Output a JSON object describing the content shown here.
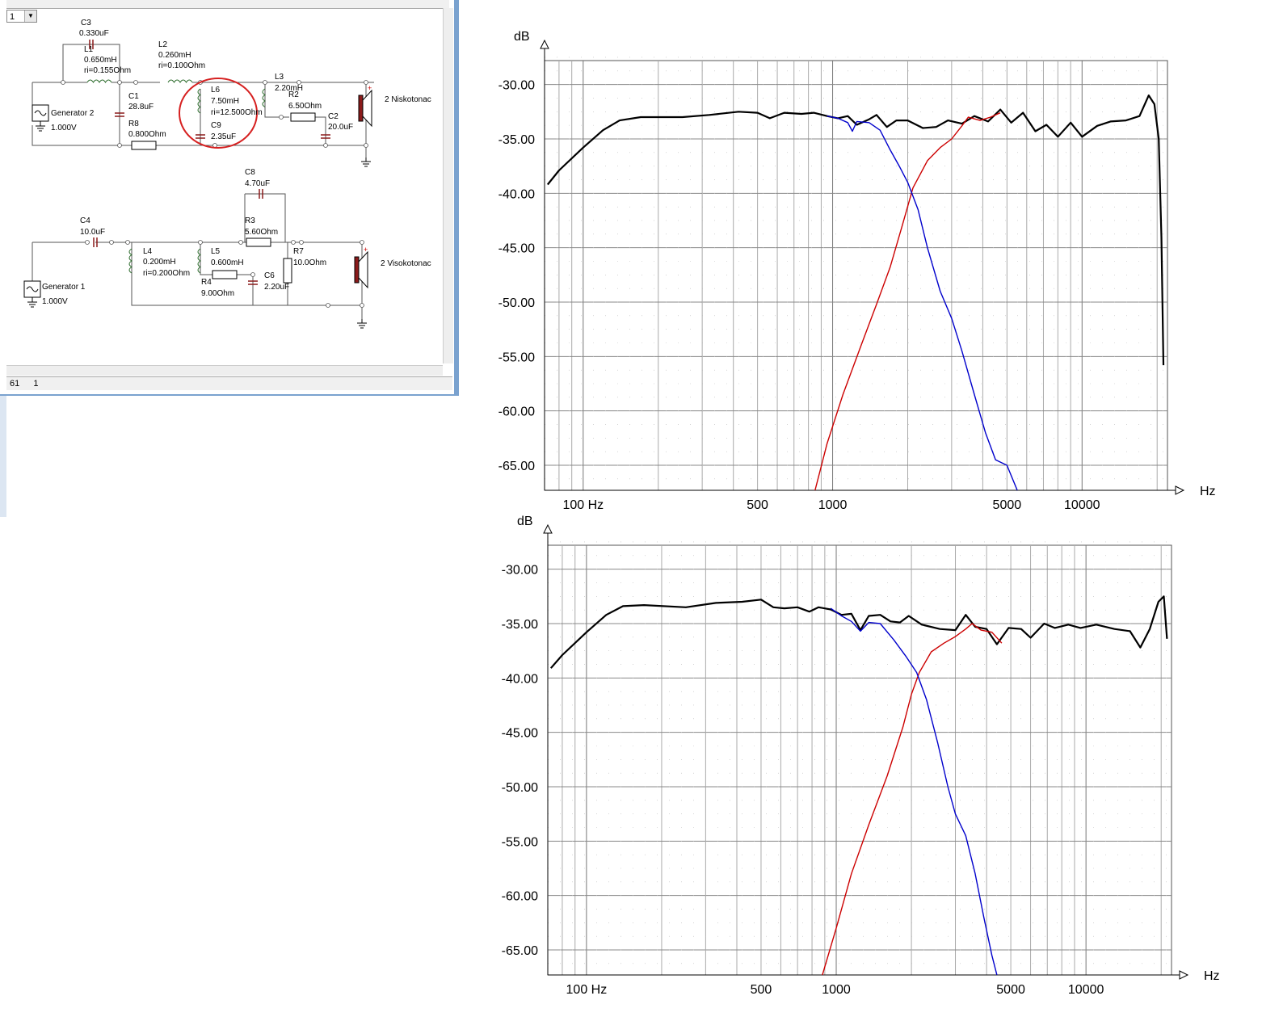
{
  "window": {
    "combo_value": "1",
    "status_left": "61",
    "status_right": "1"
  },
  "schematic": {
    "upper": {
      "generator_name": "Generator 2",
      "generator_value": "1.000V",
      "speaker": "2 Niskotonac",
      "components": [
        {
          "name": "C3",
          "value": "0.330uF"
        },
        {
          "name": "L1",
          "value": "0.650mH",
          "extra": "ri=0.155Ohm"
        },
        {
          "name": "L2",
          "value": "0.260mH",
          "extra": "ri=0.100Ohm"
        },
        {
          "name": "C1",
          "value": "28.8uF"
        },
        {
          "name": "R8",
          "value": "0.800Ohm"
        },
        {
          "name": "L6",
          "value": "7.50mH",
          "extra": "ri=12.500Ohm"
        },
        {
          "name": "C9",
          "value": "2.35uF"
        },
        {
          "name": "L3",
          "value": "2.20mH"
        },
        {
          "name": "R2",
          "value": "6.50Ohm"
        },
        {
          "name": "C2",
          "value": "20.0uF"
        }
      ]
    },
    "lower": {
      "generator_name": "Generator 1",
      "generator_value": "1.000V",
      "speaker": "2 Visokotonac",
      "components": [
        {
          "name": "C8",
          "value": "4.70uF"
        },
        {
          "name": "C4",
          "value": "10.0uF"
        },
        {
          "name": "R3",
          "value": "5.60Ohm"
        },
        {
          "name": "L4",
          "value": "0.200mH",
          "extra": "ri=0.200Ohm"
        },
        {
          "name": "L5",
          "value": "0.600mH"
        },
        {
          "name": "R7",
          "value": "10.0Ohm"
        },
        {
          "name": "R4",
          "value": "9.00Ohm"
        },
        {
          "name": "C6",
          "value": "2.20uF"
        }
      ]
    }
  },
  "chart_data": [
    {
      "type": "line",
      "ylabel": "dB",
      "xlabel": "Hz",
      "xscale": "log",
      "yticks": [
        "-30.00",
        "-35.00",
        "-40.00",
        "-45.00",
        "-50.00",
        "-55.00",
        "-60.00",
        "-65.00"
      ],
      "xticks": [
        {
          "v": 100,
          "label": "100 Hz"
        },
        {
          "v": 500,
          "label": "500"
        },
        {
          "v": 1000,
          "label": "1000"
        },
        {
          "v": 5000,
          "label": "5000"
        },
        {
          "v": 10000,
          "label": "10000"
        }
      ],
      "xlim": [
        70,
        22000
      ],
      "ylim": [
        -67.3,
        -27.8
      ],
      "grid": true,
      "series": [
        {
          "color": "#000000",
          "width": 2.2,
          "points": [
            [
              72,
              -39.2
            ],
            [
              80,
              -37.9
            ],
            [
              100,
              -35.8
            ],
            [
              120,
              -34.2
            ],
            [
              140,
              -33.3
            ],
            [
              170,
              -33.0
            ],
            [
              250,
              -33.0
            ],
            [
              320,
              -32.8
            ],
            [
              420,
              -32.5
            ],
            [
              500,
              -32.6
            ],
            [
              560,
              -33.1
            ],
            [
              640,
              -32.6
            ],
            [
              750,
              -32.7
            ],
            [
              840,
              -32.6
            ],
            [
              950,
              -32.9
            ],
            [
              1050,
              -33.1
            ],
            [
              1150,
              -32.9
            ],
            [
              1250,
              -33.7
            ],
            [
              1400,
              -33.2
            ],
            [
              1500,
              -32.8
            ],
            [
              1650,
              -33.9
            ],
            [
              1800,
              -33.3
            ],
            [
              2000,
              -33.3
            ],
            [
              2300,
              -34.0
            ],
            [
              2600,
              -33.9
            ],
            [
              2900,
              -33.3
            ],
            [
              3300,
              -33.6
            ],
            [
              3700,
              -32.9
            ],
            [
              4200,
              -33.4
            ],
            [
              4700,
              -32.3
            ],
            [
              5200,
              -33.5
            ],
            [
              5800,
              -32.6
            ],
            [
              6500,
              -34.3
            ],
            [
              7200,
              -33.7
            ],
            [
              8000,
              -34.8
            ],
            [
              9000,
              -33.5
            ],
            [
              10000,
              -34.8
            ],
            [
              11500,
              -33.8
            ],
            [
              13000,
              -33.4
            ],
            [
              15000,
              -33.3
            ],
            [
              17000,
              -32.9
            ],
            [
              18500,
              -31.0
            ],
            [
              19500,
              -31.8
            ],
            [
              20300,
              -35.0
            ],
            [
              20800,
              -44.0
            ],
            [
              21200,
              -55.8
            ]
          ]
        },
        {
          "color": "#cc0000",
          "width": 1.4,
          "points": [
            [
              850,
              -67.3
            ],
            [
              950,
              -63.0
            ],
            [
              1100,
              -58.5
            ],
            [
              1300,
              -54.0
            ],
            [
              1500,
              -50.2
            ],
            [
              1700,
              -46.8
            ],
            [
              1900,
              -43.0
            ],
            [
              2100,
              -39.5
            ],
            [
              2400,
              -37.0
            ],
            [
              2700,
              -35.8
            ],
            [
              3000,
              -35.0
            ],
            [
              3300,
              -33.8
            ],
            [
              3500,
              -33.0
            ],
            [
              3900,
              -33.3
            ],
            [
              4300,
              -33.0
            ],
            [
              4700,
              -32.6
            ]
          ]
        },
        {
          "color": "#0000cc",
          "width": 1.4,
          "points": [
            [
              950,
              -32.9
            ],
            [
              1050,
              -33.1
            ],
            [
              1150,
              -33.5
            ],
            [
              1200,
              -34.3
            ],
            [
              1250,
              -33.4
            ],
            [
              1400,
              -33.5
            ],
            [
              1550,
              -34.2
            ],
            [
              1700,
              -36.0
            ],
            [
              1850,
              -37.5
            ],
            [
              2000,
              -39.0
            ],
            [
              2200,
              -41.5
            ],
            [
              2400,
              -45.0
            ],
            [
              2700,
              -49.0
            ],
            [
              3000,
              -51.5
            ],
            [
              3300,
              -54.5
            ],
            [
              3700,
              -58.5
            ],
            [
              4100,
              -62.0
            ],
            [
              4500,
              -64.5
            ],
            [
              5000,
              -65.0
            ],
            [
              5500,
              -67.3
            ]
          ]
        }
      ]
    },
    {
      "type": "line",
      "ylabel": "dB",
      "xlabel": "Hz",
      "xscale": "log",
      "yticks": [
        "-30.00",
        "-35.00",
        "-40.00",
        "-45.00",
        "-50.00",
        "-55.00",
        "-60.00",
        "-65.00"
      ],
      "xticks": [
        {
          "v": 100,
          "label": "100 Hz"
        },
        {
          "v": 500,
          "label": "500"
        },
        {
          "v": 1000,
          "label": "1000"
        },
        {
          "v": 5000,
          "label": "5000"
        },
        {
          "v": 10000,
          "label": "10000"
        }
      ],
      "xlim": [
        70,
        22000
      ],
      "ylim": [
        -67.3,
        -27.8
      ],
      "grid": true,
      "series": [
        {
          "color": "#000000",
          "width": 2.2,
          "points": [
            [
              72,
              -39.1
            ],
            [
              80,
              -37.9
            ],
            [
              100,
              -35.8
            ],
            [
              120,
              -34.2
            ],
            [
              140,
              -33.4
            ],
            [
              170,
              -33.3
            ],
            [
              250,
              -33.5
            ],
            [
              330,
              -33.1
            ],
            [
              420,
              -33.0
            ],
            [
              500,
              -32.8
            ],
            [
              560,
              -33.5
            ],
            [
              620,
              -33.6
            ],
            [
              700,
              -33.5
            ],
            [
              780,
              -33.9
            ],
            [
              850,
              -33.5
            ],
            [
              950,
              -33.7
            ],
            [
              1050,
              -34.2
            ],
            [
              1150,
              -34.1
            ],
            [
              1250,
              -35.6
            ],
            [
              1350,
              -34.3
            ],
            [
              1500,
              -34.2
            ],
            [
              1650,
              -34.8
            ],
            [
              1800,
              -34.9
            ],
            [
              1950,
              -34.3
            ],
            [
              2200,
              -35.1
            ],
            [
              2600,
              -35.5
            ],
            [
              3000,
              -35.6
            ],
            [
              3300,
              -34.2
            ],
            [
              3600,
              -35.3
            ],
            [
              4000,
              -35.5
            ],
            [
              4400,
              -36.9
            ],
            [
              4900,
              -35.4
            ],
            [
              5500,
              -35.5
            ],
            [
              6000,
              -36.3
            ],
            [
              6800,
              -35.0
            ],
            [
              7500,
              -35.4
            ],
            [
              8500,
              -35.1
            ],
            [
              9500,
              -35.4
            ],
            [
              11000,
              -35.1
            ],
            [
              13000,
              -35.5
            ],
            [
              15000,
              -35.7
            ],
            [
              16500,
              -37.2
            ],
            [
              18000,
              -35.5
            ],
            [
              19500,
              -33.0
            ],
            [
              20500,
              -32.5
            ],
            [
              21100,
              -36.4
            ]
          ]
        },
        {
          "color": "#cc0000",
          "width": 1.4,
          "points": [
            [
              880,
              -67.3
            ],
            [
              1000,
              -63.0
            ],
            [
              1150,
              -58.0
            ],
            [
              1350,
              -53.5
            ],
            [
              1600,
              -49.0
            ],
            [
              1850,
              -44.5
            ],
            [
              2000,
              -41.5
            ],
            [
              2150,
              -39.5
            ],
            [
              2400,
              -37.6
            ],
            [
              2700,
              -36.8
            ],
            [
              3000,
              -36.2
            ],
            [
              3300,
              -35.5
            ],
            [
              3500,
              -35.0
            ],
            [
              3800,
              -35.6
            ],
            [
              4200,
              -35.8
            ],
            [
              4600,
              -36.8
            ]
          ]
        },
        {
          "color": "#0000cc",
          "width": 1.4,
          "points": [
            [
              950,
              -33.6
            ],
            [
              1050,
              -34.3
            ],
            [
              1150,
              -34.8
            ],
            [
              1250,
              -35.7
            ],
            [
              1350,
              -34.9
            ],
            [
              1500,
              -35.0
            ],
            [
              1700,
              -36.5
            ],
            [
              1900,
              -38.0
            ],
            [
              2100,
              -39.5
            ],
            [
              2300,
              -42.0
            ],
            [
              2550,
              -46.0
            ],
            [
              2800,
              -50.0
            ],
            [
              3000,
              -52.5
            ],
            [
              3300,
              -54.5
            ],
            [
              3600,
              -58.0
            ],
            [
              3900,
              -62.0
            ],
            [
              4200,
              -65.5
            ],
            [
              4400,
              -67.3
            ]
          ]
        }
      ]
    }
  ]
}
